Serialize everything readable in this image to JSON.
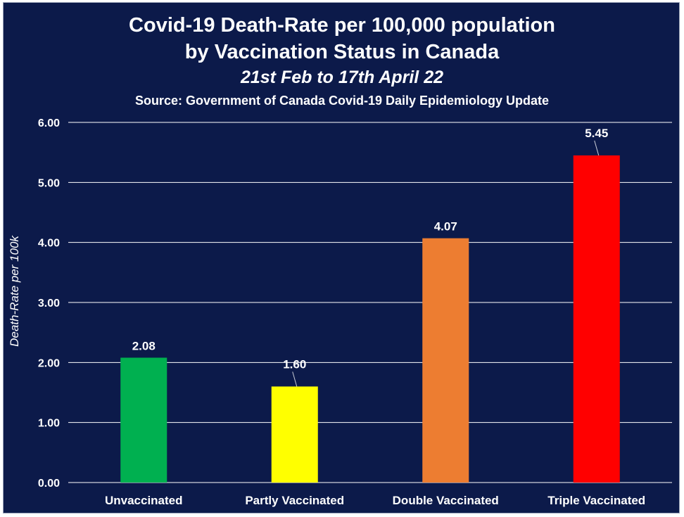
{
  "chart_data": {
    "type": "bar",
    "title_line1": "Covid-19 Death-Rate per 100,000 population",
    "title_line2": "by Vaccination Status in Canada",
    "subtitle": "21st Feb to 17th April 22",
    "source": "Source: Government of Canada Covid-19 Daily Epidemiology Update",
    "ylabel": "Death-Rate per 100k",
    "xlabel": "",
    "ylim": [
      0,
      6
    ],
    "yticks": [
      "0.00",
      "1.00",
      "2.00",
      "3.00",
      "4.00",
      "5.00",
      "6.00"
    ],
    "categories": [
      "Unvaccinated",
      "Partly Vaccinated",
      "Double Vaccinated",
      "Triple Vaccinated"
    ],
    "values": [
      2.08,
      1.6,
      4.07,
      5.45
    ],
    "data_labels": [
      "2.08",
      "1.60",
      "4.07",
      "5.45"
    ],
    "bar_colors": [
      "#00b050",
      "#ffff00",
      "#ed7d31",
      "#ff0000"
    ],
    "grid": true,
    "legend": "none",
    "background_color": "#0c1a4a",
    "gridline_color": "#ffffff"
  }
}
